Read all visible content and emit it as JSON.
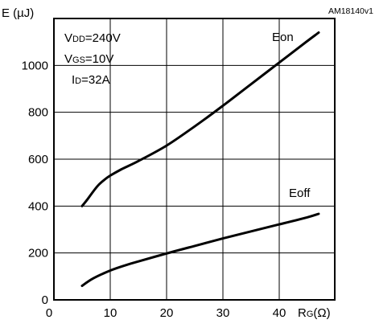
{
  "chart_data": {
    "type": "line",
    "id_label": "AM18140v1",
    "xlabel": {
      "main": "R",
      "sub": "G",
      "unit": "(Ω)"
    },
    "ylabel": "E (µJ)",
    "xlim": [
      0,
      50
    ],
    "ylim": [
      0,
      1200
    ],
    "x_ticks": [
      0,
      10,
      20,
      30,
      40
    ],
    "y_ticks": [
      0,
      200,
      400,
      600,
      800,
      1000
    ],
    "grid": true,
    "conditions": [
      {
        "main": "V",
        "sub": "DD",
        "value": "=240V"
      },
      {
        "main": "V",
        "sub": "GS",
        "value": "=10V"
      },
      {
        "main": "I",
        "sub": "D",
        "value": "=32A"
      }
    ],
    "series": [
      {
        "name": "Eon",
        "x": [
          5,
          6,
          7,
          8,
          9,
          10,
          12,
          15,
          20,
          25,
          30,
          35,
          40,
          45,
          47
        ],
        "y": [
          400,
          430,
          463,
          492,
          513,
          530,
          557,
          592,
          658,
          740,
          828,
          920,
          1012,
          1104,
          1140
        ]
      },
      {
        "name": "Eoff",
        "x": [
          5,
          7,
          10,
          13,
          15,
          20,
          25,
          30,
          35,
          40,
          45,
          47
        ],
        "y": [
          60,
          92,
          125,
          150,
          164,
          198,
          230,
          262,
          292,
          322,
          352,
          367
        ]
      }
    ]
  }
}
